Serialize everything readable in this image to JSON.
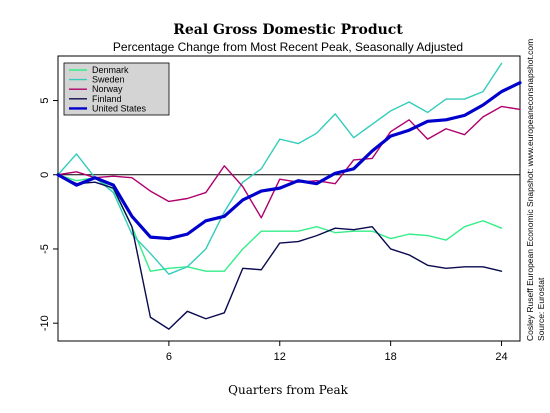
{
  "chart_data": {
    "type": "line",
    "title": "Real Gross Domestic Product",
    "subtitle": "Percentage Change from Most Recent Peak, Seasonally Adjusted",
    "xlabel": "Quarters from Peak",
    "ylabel": "",
    "xlim": [
      0,
      25
    ],
    "ylim": [
      -11.2,
      8.0
    ],
    "x_ticks": [
      6,
      12,
      18,
      24
    ],
    "y_ticks": [
      -10,
      -5,
      0,
      5
    ],
    "x": [
      0,
      1,
      2,
      3,
      4,
      5,
      6,
      7,
      8,
      9,
      10,
      11,
      12,
      13,
      14,
      15,
      16,
      17,
      18,
      19,
      20,
      21,
      22,
      23,
      24,
      25
    ],
    "legend_position": "top-left",
    "grid": false,
    "zero_line": true,
    "series": [
      {
        "name": "Denmark",
        "color": "#33ee88",
        "values": [
          0.0,
          -0.4,
          -0.2,
          -1.0,
          -3.5,
          -6.5,
          -6.3,
          -6.2,
          -6.5,
          -6.5,
          -5.0,
          -3.8,
          -3.8,
          -3.8,
          -3.5,
          -3.9,
          -3.8,
          -3.8,
          -4.3,
          -4.0,
          -4.1,
          -4.4,
          -3.5,
          -3.1,
          -3.6,
          null
        ]
      },
      {
        "name": "Sweden",
        "color": "#33ccbb",
        "values": [
          0.0,
          1.4,
          -0.2,
          -1.2,
          -4.0,
          -5.3,
          -6.7,
          -6.2,
          -5.0,
          -2.5,
          -0.5,
          0.4,
          2.4,
          2.1,
          2.8,
          4.1,
          2.5,
          3.4,
          4.3,
          4.9,
          4.2,
          5.1,
          5.1,
          5.6,
          7.5,
          null
        ]
      },
      {
        "name": "Norway",
        "color": "#b0006e",
        "values": [
          0.0,
          0.2,
          -0.2,
          -0.1,
          -0.2,
          -1.1,
          -1.8,
          -1.6,
          -1.2,
          0.6,
          -0.8,
          -2.9,
          -0.3,
          -0.5,
          -0.4,
          -0.6,
          1.0,
          1.1,
          2.9,
          3.7,
          2.4,
          3.1,
          2.7,
          3.9,
          4.6,
          4.4
        ]
      },
      {
        "name": "Finland",
        "color": "#0a0a50",
        "values": [
          0.0,
          -0.6,
          -0.5,
          -0.9,
          -3.5,
          -9.6,
          -10.4,
          -9.2,
          -9.7,
          -9.3,
          -6.3,
          -6.4,
          -4.6,
          -4.5,
          -4.1,
          -3.6,
          -3.7,
          -3.5,
          -5.0,
          -5.4,
          -6.1,
          -6.3,
          -6.2,
          -6.2,
          -6.5,
          null
        ]
      },
      {
        "name": "United States",
        "color": "#0000cc",
        "values": [
          0.0,
          -0.7,
          -0.2,
          -0.7,
          -2.8,
          -4.2,
          -4.3,
          -4.0,
          -3.1,
          -2.8,
          -1.7,
          -1.1,
          -0.9,
          -0.4,
          -0.6,
          0.1,
          0.4,
          1.6,
          2.6,
          3.0,
          3.6,
          3.7,
          4.0,
          4.7,
          5.6,
          6.2
        ]
      }
    ]
  },
  "credit": {
    "line1": "Cosley Ruseff European Economic Snapshot: www.europeaneconsnapshot.com",
    "line2": "Source: Eurostat"
  }
}
